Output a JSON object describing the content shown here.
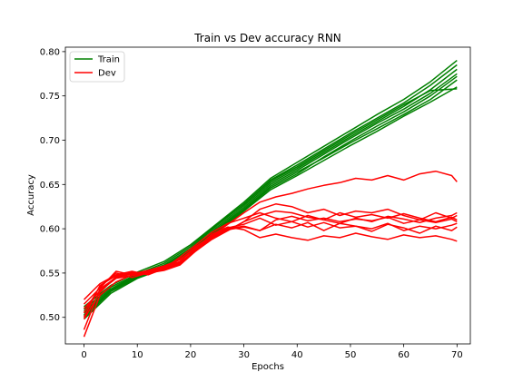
{
  "chart_data": {
    "type": "line",
    "title": "Train vs Dev accuracy RNN",
    "xlabel": "Epochs",
    "ylabel": "Accuracy",
    "xlim": [
      -3.5,
      72.5
    ],
    "ylim": [
      0.47,
      0.805
    ],
    "xticks": [
      0,
      10,
      20,
      30,
      40,
      50,
      60,
      70
    ],
    "yticks": [
      0.5,
      0.55,
      0.6,
      0.65,
      0.7,
      0.75,
      0.8
    ],
    "ytick_labels": [
      "0.50",
      "0.55",
      "0.60",
      "0.65",
      "0.70",
      "0.75",
      "0.80"
    ],
    "grid": false,
    "legend": {
      "placement": "upper-left",
      "entries": [
        {
          "label": "Train",
          "color": "#008000"
        },
        {
          "label": "Dev",
          "color": "#ff0000"
        }
      ]
    },
    "colors": {
      "train": "#008000",
      "dev": "#ff0000"
    },
    "series": [
      {
        "group": "train",
        "x": [
          0,
          5,
          10,
          15,
          20,
          25,
          30,
          35,
          40,
          45,
          50,
          55,
          60,
          65,
          70
        ],
        "y": [
          0.507,
          0.532,
          0.548,
          0.559,
          0.578,
          0.604,
          0.628,
          0.655,
          0.672,
          0.69,
          0.708,
          0.725,
          0.742,
          0.762,
          0.785
        ]
      },
      {
        "group": "train",
        "x": [
          0,
          5,
          10,
          15,
          20,
          25,
          30,
          35,
          40,
          45,
          50,
          55,
          60,
          65,
          70
        ],
        "y": [
          0.502,
          0.531,
          0.547,
          0.558,
          0.576,
          0.602,
          0.626,
          0.652,
          0.668,
          0.686,
          0.704,
          0.721,
          0.738,
          0.757,
          0.78
        ]
      },
      {
        "group": "train",
        "x": [
          0,
          5,
          10,
          15,
          20,
          25,
          30,
          35,
          40,
          45,
          50,
          55,
          60,
          65,
          70
        ],
        "y": [
          0.512,
          0.536,
          0.551,
          0.563,
          0.582,
          0.606,
          0.63,
          0.657,
          0.675,
          0.693,
          0.711,
          0.729,
          0.746,
          0.766,
          0.79
        ]
      },
      {
        "group": "train",
        "x": [
          0,
          5,
          10,
          15,
          20,
          25,
          30,
          35,
          40,
          45,
          50,
          55,
          60,
          65,
          70
        ],
        "y": [
          0.5,
          0.529,
          0.545,
          0.556,
          0.574,
          0.598,
          0.621,
          0.646,
          0.662,
          0.681,
          0.699,
          0.716,
          0.732,
          0.75,
          0.772
        ]
      },
      {
        "group": "train",
        "x": [
          0,
          5,
          10,
          15,
          20,
          25,
          30,
          35,
          40,
          45,
          50,
          55,
          60,
          65,
          70
        ],
        "y": [
          0.505,
          0.53,
          0.546,
          0.557,
          0.575,
          0.6,
          0.624,
          0.65,
          0.666,
          0.684,
          0.702,
          0.719,
          0.735,
          0.753,
          0.775
        ]
      },
      {
        "group": "train",
        "x": [
          0,
          5,
          10,
          15,
          20,
          25,
          30,
          35,
          40,
          45,
          50,
          55,
          60,
          65,
          70
        ],
        "y": [
          0.498,
          0.527,
          0.544,
          0.555,
          0.573,
          0.597,
          0.62,
          0.644,
          0.66,
          0.677,
          0.694,
          0.71,
          0.727,
          0.743,
          0.76
        ]
      },
      {
        "group": "train",
        "x": [
          0,
          5,
          10,
          15,
          20,
          25,
          30,
          35,
          40,
          45,
          50,
          55,
          60,
          65,
          70
        ],
        "y": [
          0.509,
          0.534,
          0.549,
          0.561,
          0.58,
          0.605,
          0.628,
          0.654,
          0.67,
          0.688,
          0.706,
          0.723,
          0.74,
          0.756,
          0.758
        ]
      },
      {
        "group": "train",
        "x": [
          0,
          5,
          10,
          15,
          20,
          25,
          30,
          35,
          40,
          45,
          50,
          55,
          60,
          65,
          70
        ],
        "y": [
          0.503,
          0.53,
          0.546,
          0.557,
          0.574,
          0.599,
          0.622,
          0.648,
          0.664,
          0.68,
          0.697,
          0.713,
          0.729,
          0.746,
          0.768
        ]
      },
      {
        "group": "dev",
        "x": [
          0,
          3,
          6,
          9,
          12,
          15,
          18,
          21,
          24,
          27,
          30,
          33,
          36,
          39,
          42,
          45,
          48,
          51,
          54,
          57,
          60,
          63,
          66,
          69,
          70
        ],
        "y": [
          0.486,
          0.532,
          0.545,
          0.549,
          0.553,
          0.558,
          0.565,
          0.58,
          0.592,
          0.605,
          0.618,
          0.63,
          0.636,
          0.64,
          0.645,
          0.649,
          0.652,
          0.657,
          0.655,
          0.66,
          0.655,
          0.662,
          0.665,
          0.66,
          0.653
        ]
      },
      {
        "group": "dev",
        "x": [
          0,
          3,
          6,
          9,
          12,
          15,
          18,
          21,
          24,
          27,
          30,
          33,
          36,
          39,
          42,
          45,
          48,
          51,
          54,
          57,
          60,
          63,
          66,
          69,
          70
        ],
        "y": [
          0.478,
          0.525,
          0.54,
          0.548,
          0.552,
          0.556,
          0.562,
          0.575,
          0.588,
          0.598,
          0.608,
          0.622,
          0.628,
          0.625,
          0.618,
          0.622,
          0.615,
          0.62,
          0.618,
          0.622,
          0.615,
          0.61,
          0.618,
          0.612,
          0.615
        ]
      },
      {
        "group": "dev",
        "x": [
          0,
          3,
          6,
          9,
          12,
          15,
          18,
          21,
          24,
          27,
          30,
          33,
          36,
          39,
          42,
          45,
          48,
          51,
          54,
          57,
          60,
          63,
          66,
          69,
          70
        ],
        "y": [
          0.52,
          0.538,
          0.548,
          0.552,
          0.548,
          0.555,
          0.568,
          0.582,
          0.596,
          0.606,
          0.612,
          0.618,
          0.612,
          0.608,
          0.615,
          0.61,
          0.606,
          0.612,
          0.608,
          0.614,
          0.611,
          0.607,
          0.612,
          0.615,
          0.618
        ]
      },
      {
        "group": "dev",
        "x": [
          0,
          3,
          6,
          9,
          12,
          15,
          18,
          21,
          24,
          27,
          30,
          33,
          36,
          39,
          42,
          45,
          48,
          51,
          54,
          57,
          60,
          63,
          66,
          69,
          70
        ],
        "y": [
          0.51,
          0.53,
          0.544,
          0.547,
          0.55,
          0.553,
          0.559,
          0.575,
          0.59,
          0.6,
          0.603,
          0.598,
          0.605,
          0.601,
          0.607,
          0.598,
          0.606,
          0.603,
          0.597,
          0.605,
          0.601,
          0.595,
          0.603,
          0.598,
          0.602
        ]
      },
      {
        "group": "dev",
        "x": [
          0,
          3,
          6,
          9,
          12,
          15,
          18,
          21,
          24,
          27,
          30,
          33,
          36,
          39,
          42,
          45,
          48,
          51,
          54,
          57,
          60,
          63,
          66,
          69,
          70
        ],
        "y": [
          0.505,
          0.535,
          0.55,
          0.545,
          0.55,
          0.556,
          0.566,
          0.578,
          0.594,
          0.602,
          0.599,
          0.59,
          0.594,
          0.59,
          0.587,
          0.592,
          0.59,
          0.595,
          0.591,
          0.588,
          0.593,
          0.59,
          0.592,
          0.588,
          0.586
        ]
      },
      {
        "group": "dev",
        "x": [
          0,
          3,
          6,
          9,
          12,
          15,
          18,
          21,
          24,
          27,
          30,
          33,
          36,
          39,
          42,
          45,
          48,
          51,
          54,
          57,
          60,
          63,
          66,
          69,
          70
        ],
        "y": [
          0.498,
          0.528,
          0.546,
          0.55,
          0.551,
          0.554,
          0.56,
          0.576,
          0.589,
          0.598,
          0.608,
          0.615,
          0.62,
          0.618,
          0.613,
          0.61,
          0.618,
          0.613,
          0.616,
          0.612,
          0.617,
          0.612,
          0.608,
          0.613,
          0.61
        ]
      },
      {
        "group": "dev",
        "x": [
          0,
          3,
          6,
          9,
          12,
          15,
          18,
          21,
          24,
          27,
          30,
          33,
          36,
          39,
          42,
          45,
          48,
          51,
          54,
          57,
          60,
          63,
          66,
          69,
          70
        ],
        "y": [
          0.515,
          0.533,
          0.552,
          0.548,
          0.552,
          0.557,
          0.563,
          0.579,
          0.592,
          0.601,
          0.605,
          0.612,
          0.604,
          0.608,
          0.602,
          0.607,
          0.601,
          0.603,
          0.6,
          0.606,
          0.598,
          0.603,
          0.6,
          0.604,
          0.606
        ]
      },
      {
        "group": "dev",
        "x": [
          0,
          3,
          6,
          9,
          12,
          15,
          18,
          21,
          24,
          27,
          30,
          33,
          36,
          39,
          42,
          45,
          48,
          51,
          54,
          57,
          60,
          63,
          66,
          69,
          70
        ],
        "y": [
          0.5,
          0.536,
          0.547,
          0.551,
          0.549,
          0.555,
          0.561,
          0.577,
          0.591,
          0.599,
          0.602,
          0.598,
          0.61,
          0.614,
          0.609,
          0.612,
          0.608,
          0.611,
          0.609,
          0.613,
          0.606,
          0.61,
          0.607,
          0.611,
          0.608
        ]
      }
    ]
  }
}
